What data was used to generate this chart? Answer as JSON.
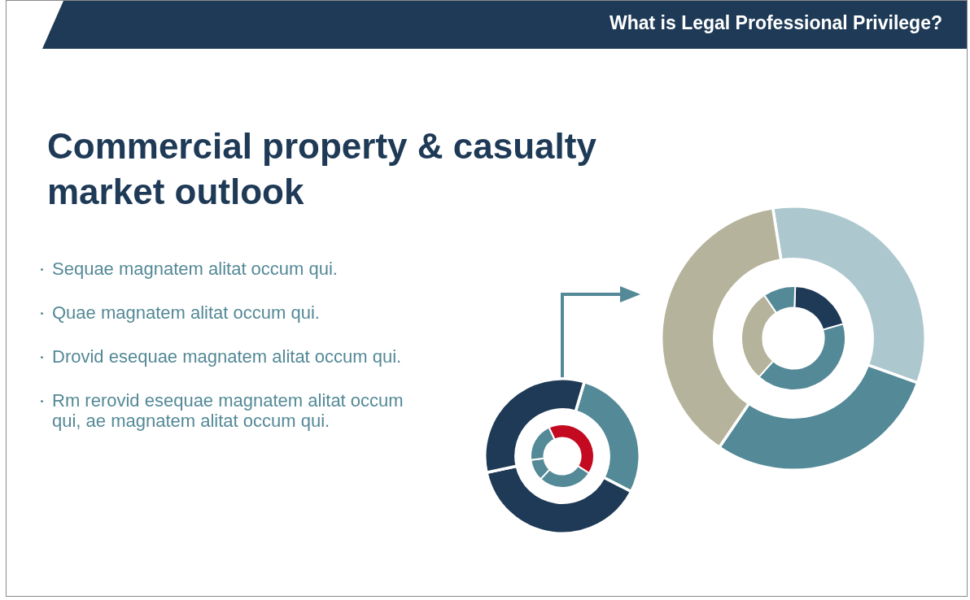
{
  "chart_data": [
    {
      "type": "donut",
      "title": "Commercial property & casualty market outlook",
      "annotations": [
        "Sequae magnatem alitat occum qui.",
        "Quae magnatem alitat occum qui.",
        "Drovid esequae magnatem alitat occum qui.",
        "Rm rerovid esequae magnatem alitat occum qui, ae magnatem alitat occum qui."
      ],
      "categories": [
        null,
        null,
        null
      ],
      "values": [
        28,
        39,
        33
      ],
      "colors": [
        "#548997",
        "#1e3a56",
        "#1e3a56"
      ]
    },
    {
      "type": "donut",
      "categories": [
        null,
        null,
        null,
        null
      ],
      "values": [
        41,
        28,
        11,
        20
      ],
      "colors": [
        "#c40a21",
        "#548997",
        "#548997",
        "#548997"
      ]
    },
    {
      "type": "donut",
      "subtitle": "What is Legal Professional Privilege?",
      "categories": [
        null,
        null,
        null
      ],
      "values": [
        33,
        29,
        38
      ],
      "colors": [
        "#adc7cf",
        "#548997",
        "#b5b39b"
      ]
    },
    {
      "type": "donut",
      "categories": [
        null,
        null,
        null,
        null
      ],
      "values": [
        20,
        41,
        29,
        10
      ],
      "colors": [
        "#1e3a56",
        "#548997",
        "#b5b39b",
        "#548997"
      ]
    }
  ]
}
